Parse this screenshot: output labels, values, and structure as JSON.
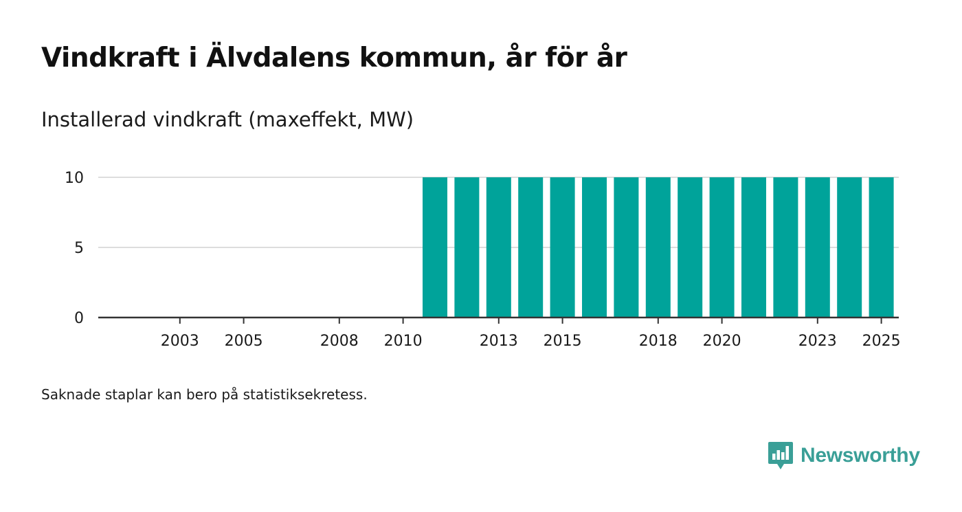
{
  "title": "Vindkraft i Älvdalens kommun, år för år",
  "subtitle": "Installerad vindkraft (maxeffekt, MW)",
  "footnote": "Saknade staplar kan bero på statistiksekretess.",
  "brand": {
    "name": "Newsworthy",
    "icon": "newsworthy-logo-icon",
    "color": "#3a9f97"
  },
  "colors": {
    "bar": "#00a39a",
    "axis": "#333333",
    "grid": "#dddddd",
    "text": "#1a1a1a"
  },
  "chart_data": {
    "type": "bar",
    "title": "Vindkraft i Älvdalens kommun, år för år",
    "ylabel": "Installerad vindkraft (maxeffekt, MW)",
    "xlabel": "",
    "categories": [
      "2001",
      "2002",
      "2003",
      "2004",
      "2005",
      "2006",
      "2007",
      "2008",
      "2009",
      "2010",
      "2011",
      "2012",
      "2013",
      "2014",
      "2015",
      "2016",
      "2017",
      "2018",
      "2019",
      "2020",
      "2021",
      "2022",
      "2023",
      "2024",
      "2025"
    ],
    "values": [
      0,
      0,
      0,
      0,
      0,
      0,
      0,
      0,
      0,
      0,
      10,
      10,
      10,
      10,
      10,
      10,
      10,
      10,
      10,
      10,
      10,
      10,
      10,
      10,
      10
    ],
    "x_tick_labels": [
      "2003",
      "2005",
      "2008",
      "2010",
      "2013",
      "2015",
      "2018",
      "2020",
      "2023",
      "2025"
    ],
    "y_ticks": [
      "0",
      "5",
      "10"
    ],
    "ylim": [
      0,
      10
    ],
    "grid": true,
    "legend": "none"
  }
}
